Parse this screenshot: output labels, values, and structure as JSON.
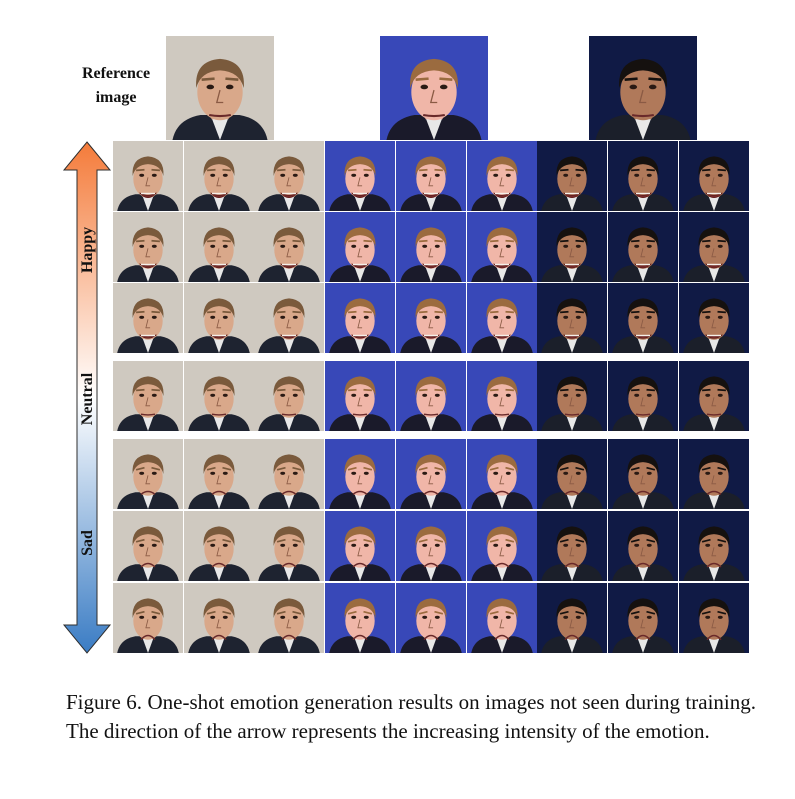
{
  "reference_label": "Reference image",
  "emotion_labels": {
    "happy": "Happy",
    "neutral": "Neutral",
    "sad": "Sad"
  },
  "arrow_colors": {
    "top": "#f47b3a",
    "middle": "#ffffff",
    "bottom": "#3a7cc4"
  },
  "subjects": [
    {
      "name": "subject-1",
      "background": "#cfc9c0",
      "skin": "#d9a88a",
      "hair": "#7a5a3c",
      "clothing": "#1e2330"
    },
    {
      "name": "subject-2",
      "background": "#3848b8",
      "skin": "#f0b6a8",
      "hair": "#9b6b3f",
      "clothing": "#1a1a2a"
    },
    {
      "name": "subject-3",
      "background": "#101a45",
      "skin": "#b0795a",
      "hair": "#15110f",
      "clothing": "#1b1f2a"
    }
  ],
  "rows": [
    "happy",
    "happy",
    "happy",
    "neutral",
    "sad",
    "sad",
    "sad"
  ],
  "caption": {
    "label": "Figure 6.",
    "text": "One-shot emotion generation results on images not seen during training. The direction of the arrow represents the increasing intensity of the emotion."
  }
}
